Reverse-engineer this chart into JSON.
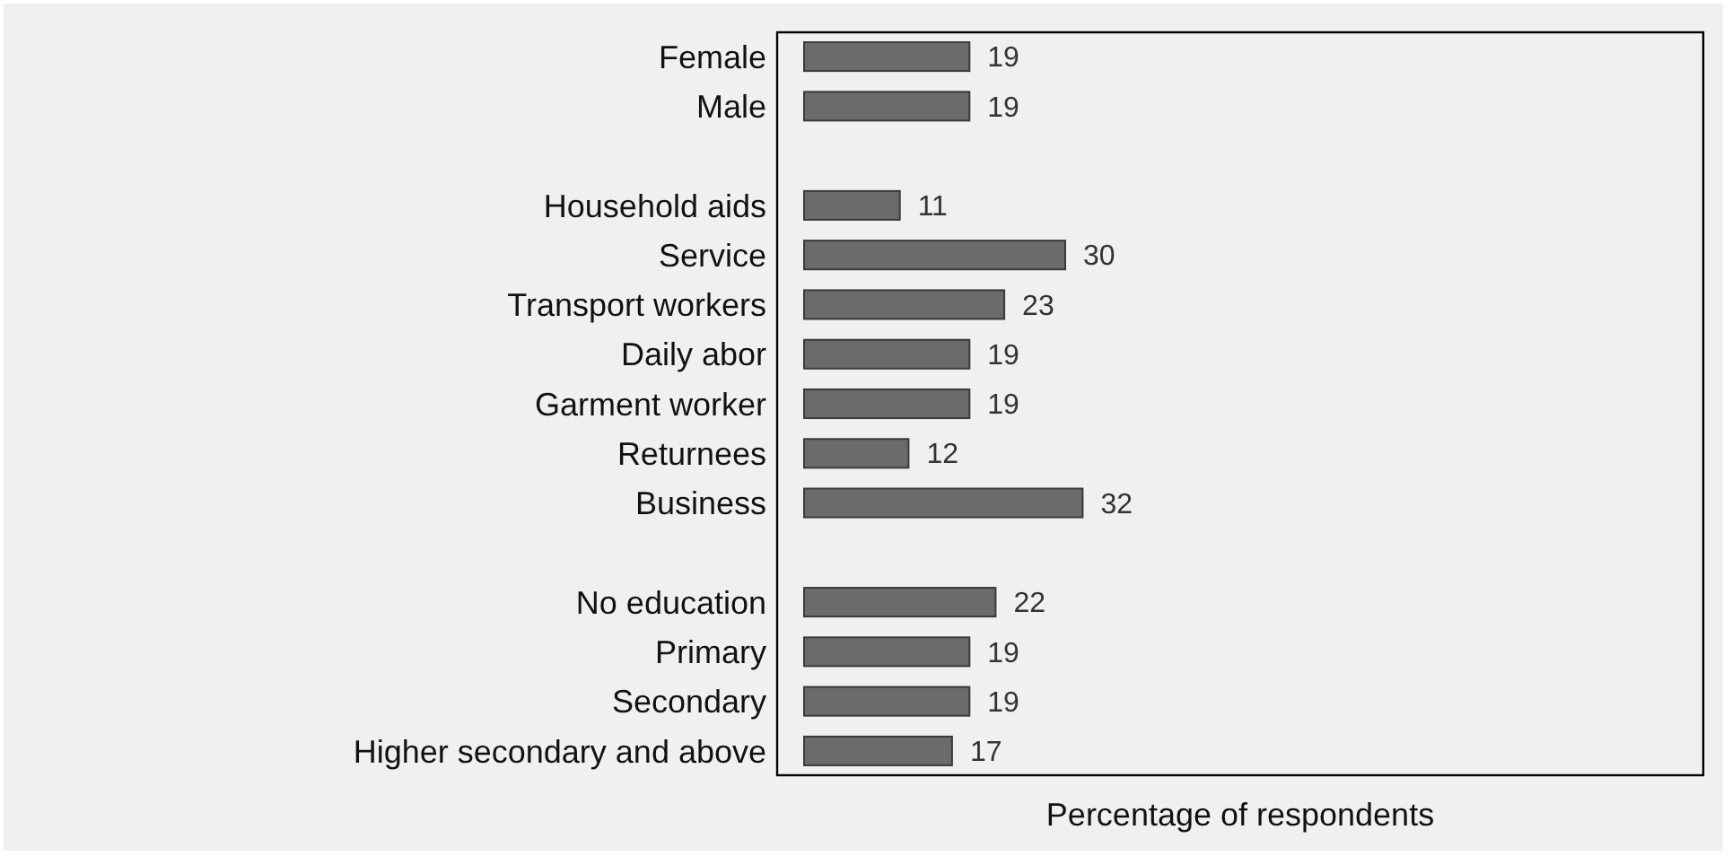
{
  "chart_data": {
    "type": "bar",
    "orientation": "horizontal",
    "xlabel": "Percentage of respondents",
    "categories": [
      "Female",
      "Male",
      null,
      "Household aids",
      "Service",
      "Transport workers",
      "Daily abor",
      "Garment worker",
      "Returnees",
      "Business",
      null,
      "No education",
      "Primary",
      "Secondary",
      "Higher secondary and above"
    ],
    "values": [
      19,
      19,
      null,
      11,
      30,
      23,
      19,
      19,
      12,
      32,
      null,
      22,
      19,
      19,
      17
    ],
    "color": "#6b6b6b",
    "data_labels": true
  }
}
